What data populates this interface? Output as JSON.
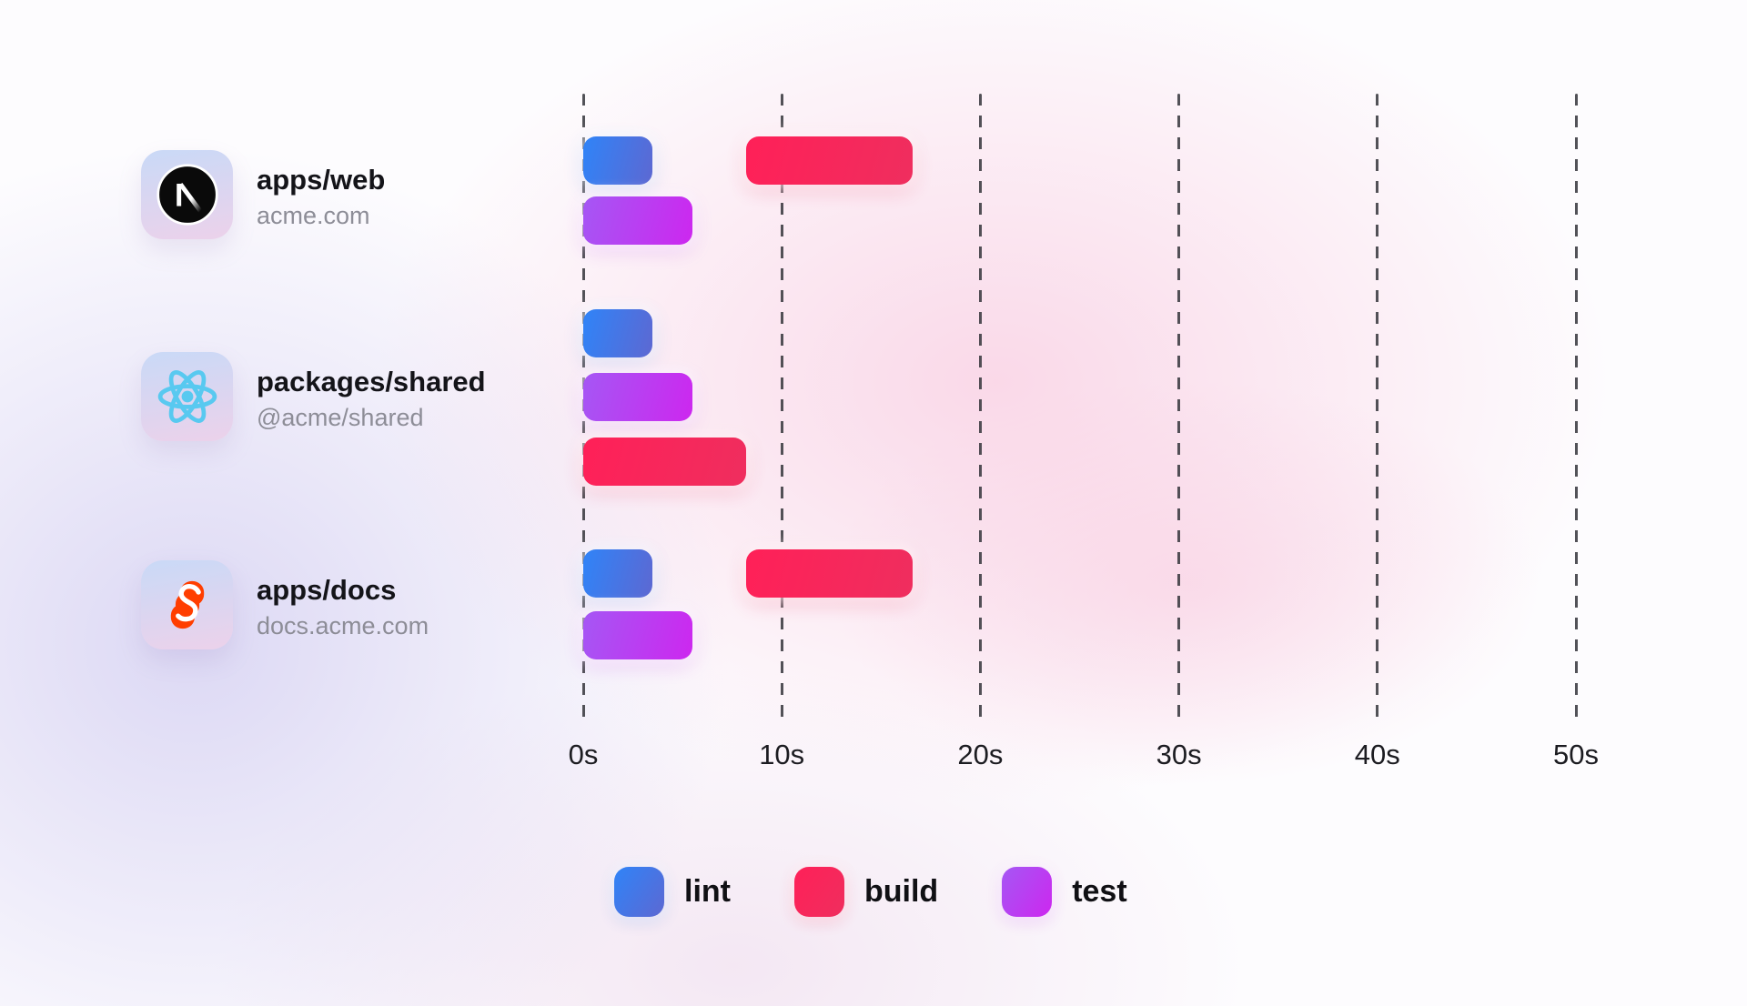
{
  "chart_data": {
    "type": "gantt",
    "title": "",
    "unit": "seconds",
    "x_range": [
      0,
      50
    ],
    "x_ticks": [
      {
        "value": 0,
        "label": "0s"
      },
      {
        "value": 10,
        "label": "10s"
      },
      {
        "value": 20,
        "label": "20s"
      },
      {
        "value": 30,
        "label": "30s"
      },
      {
        "value": 40,
        "label": "40s"
      },
      {
        "value": 50,
        "label": "50s"
      }
    ],
    "grid": "dashed-vertical",
    "legend_position": "bottom",
    "series": [
      {
        "name": "lint",
        "color_start": "#2f84f8",
        "color_end": "#5d68d2"
      },
      {
        "name": "build",
        "color_start": "#ff2058",
        "color_end": "#ef2e5e"
      },
      {
        "name": "test",
        "color_start": "#a557f4",
        "color_end": "#cd27ef"
      }
    ],
    "rows": [
      {
        "title": "apps/web",
        "subtitle": "acme.com",
        "icon": "nextjs-icon",
        "tasks": [
          {
            "task": "lint",
            "start": 0,
            "end": 3.5,
            "lane": 0
          },
          {
            "task": "build",
            "start": 8.2,
            "end": 16.6,
            "lane": 0
          },
          {
            "task": "test",
            "start": 0,
            "end": 5.5,
            "lane": 1
          }
        ]
      },
      {
        "title": "packages/shared",
        "subtitle": "@acme/shared",
        "icon": "react-icon",
        "tasks": [
          {
            "task": "lint",
            "start": 0,
            "end": 3.5,
            "lane": 0
          },
          {
            "task": "test",
            "start": 0,
            "end": 5.5,
            "lane": 1
          },
          {
            "task": "build",
            "start": 0,
            "end": 8.2,
            "lane": 2
          }
        ]
      },
      {
        "title": "apps/docs",
        "subtitle": "docs.acme.com",
        "icon": "svelte-icon",
        "tasks": [
          {
            "task": "lint",
            "start": 0,
            "end": 3.5,
            "lane": 0
          },
          {
            "task": "build",
            "start": 8.2,
            "end": 16.6,
            "lane": 0
          },
          {
            "task": "test",
            "start": 0,
            "end": 5.5,
            "lane": 1
          }
        ]
      }
    ]
  }
}
